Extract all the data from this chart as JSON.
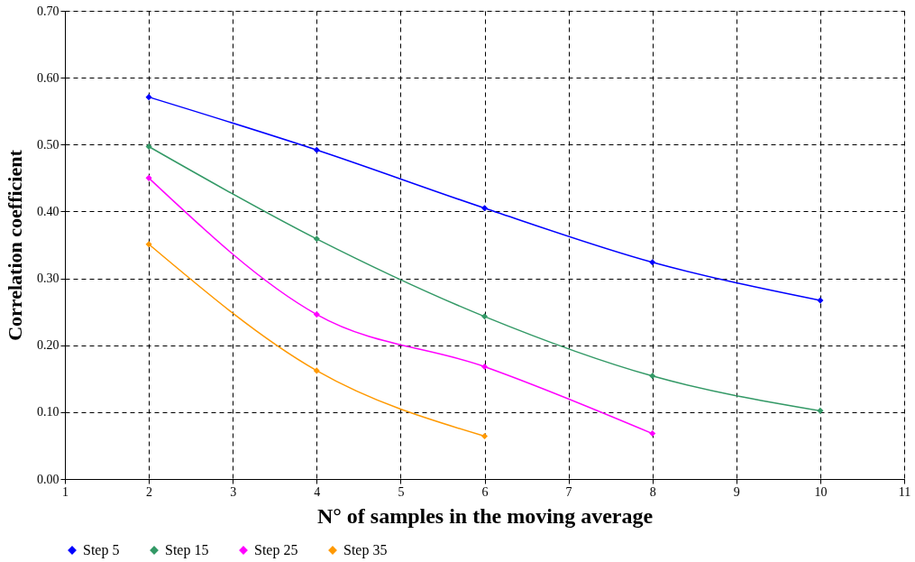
{
  "chart_data": {
    "type": "line",
    "xlabel": "N° of samples in the moving average",
    "ylabel": "Correlation coefficient",
    "x": [
      2,
      4,
      6,
      8,
      10
    ],
    "series": [
      {
        "name": "Step 5",
        "color": "#0000ff",
        "values": [
          0.571,
          0.492,
          0.405,
          0.324,
          0.267
        ]
      },
      {
        "name": "Step 15",
        "color": "#339966",
        "values": [
          0.497,
          0.359,
          0.243,
          0.154,
          0.102
        ]
      },
      {
        "name": "Step 25",
        "color": "#ff00ff",
        "values": [
          0.45,
          0.246,
          0.168,
          0.068,
          null
        ]
      },
      {
        "name": "Step 35",
        "color": "#ff9900",
        "values": [
          0.351,
          0.162,
          0.064,
          null,
          null
        ]
      }
    ],
    "xlim": [
      1,
      11
    ],
    "xticks": [
      1,
      2,
      3,
      4,
      5,
      6,
      7,
      8,
      9,
      10,
      11
    ],
    "ylim": [
      0,
      0.7
    ],
    "yticks": [
      {
        "value": 0,
        "label": "0.00"
      },
      {
        "value": 0.1,
        "label": "0.10"
      },
      {
        "value": 0.2,
        "label": "0.20"
      },
      {
        "value": 0.3,
        "label": "0.30"
      },
      {
        "value": 0.4,
        "label": "0.40"
      },
      {
        "value": 0.5,
        "label": "0.50"
      },
      {
        "value": 0.6,
        "label": "0.60"
      },
      {
        "value": 0.7,
        "label": "0.70"
      }
    ],
    "grid": true,
    "legend": "bottom",
    "marker": "diamond",
    "line_style": "solid"
  }
}
